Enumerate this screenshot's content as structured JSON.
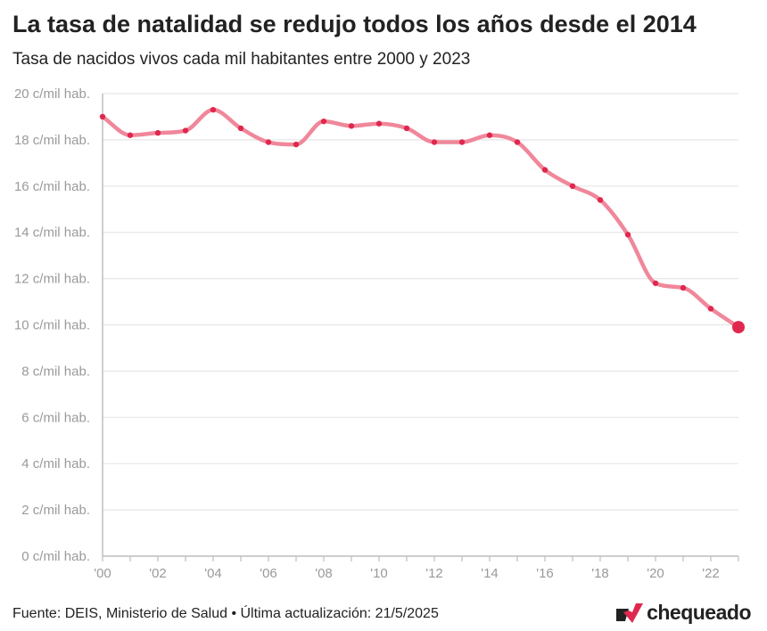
{
  "header": {
    "title": "La tasa de natalidad se redujo todos los años desde el 2014",
    "subtitle": "Tasa de nacidos vivos cada mil habitantes entre 2000 y 2023"
  },
  "footer": {
    "source": "Fuente: DEIS, Ministerio de Salud • Última actualización: 21/5/2025",
    "brand": "chequeado",
    "brand_icon": "chequeado-logo-icon"
  },
  "colors": {
    "line": "#f0879a",
    "point": "#e0284f",
    "grid": "#e6e6e6",
    "axis": "#bdbdbd",
    "tick": "#9a9a9a",
    "brand": "#e0284f"
  },
  "chart_data": {
    "type": "line",
    "title": "La tasa de natalidad se redujo todos los años desde el 2014",
    "subtitle": "Tasa de nacidos vivos cada mil habitantes entre 2000 y 2023",
    "xlabel": "",
    "ylabel": "",
    "x": [
      2000,
      2001,
      2002,
      2003,
      2004,
      2005,
      2006,
      2007,
      2008,
      2009,
      2010,
      2011,
      2012,
      2013,
      2014,
      2015,
      2016,
      2017,
      2018,
      2019,
      2020,
      2021,
      2022,
      2023
    ],
    "series": [
      {
        "name": "Tasa de natalidad",
        "values": [
          19.0,
          18.2,
          18.3,
          18.4,
          19.3,
          18.5,
          17.9,
          17.8,
          18.8,
          18.6,
          18.7,
          18.5,
          17.9,
          17.9,
          18.2,
          17.9,
          16.7,
          16.0,
          15.4,
          13.9,
          11.8,
          11.6,
          10.7,
          9.9
        ]
      }
    ],
    "xlim": [
      2000,
      2023
    ],
    "ylim": [
      0,
      20
    ],
    "y_ticks": [
      0,
      2,
      4,
      6,
      8,
      10,
      12,
      14,
      16,
      18,
      20
    ],
    "y_tick_labels": [
      "0 c/mil hab.",
      "2 c/mil hab.",
      "4 c/mil hab.",
      "6 c/mil hab.",
      "8 c/mil hab.",
      "10 c/mil hab.",
      "12 c/mil hab.",
      "14 c/mil hab.",
      "16 c/mil hab.",
      "18 c/mil hab.",
      "20 c/mil hab."
    ],
    "x_ticks": [
      2000,
      2002,
      2004,
      2006,
      2008,
      2010,
      2012,
      2014,
      2016,
      2018,
      2020,
      2022
    ],
    "x_tick_labels": [
      "'00",
      "'02",
      "'04",
      "'06",
      "'08",
      "'10",
      "'12",
      "'14",
      "'16",
      "'18",
      "'20",
      "'22"
    ],
    "grid": true,
    "highlight_last": true
  }
}
